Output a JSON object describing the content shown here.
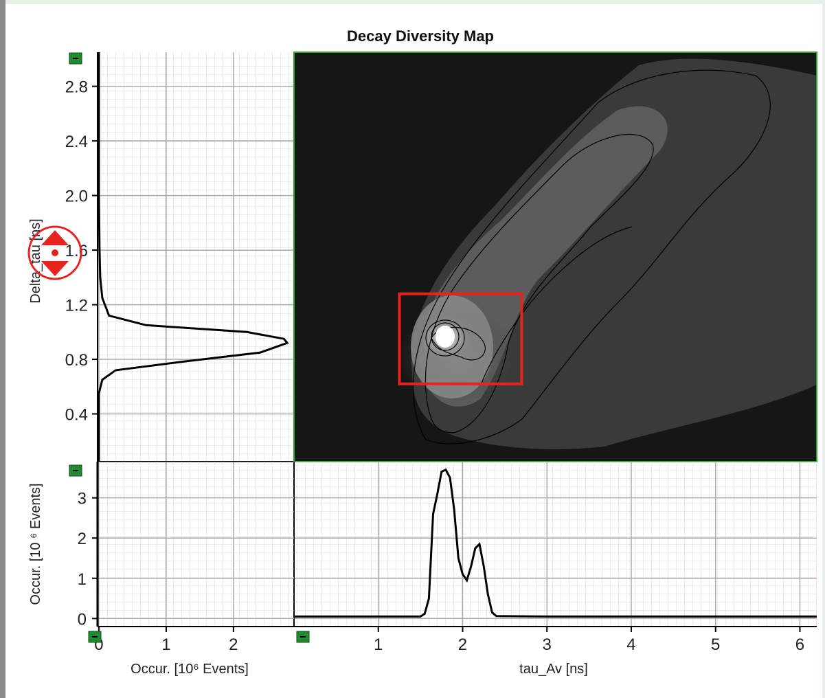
{
  "chart_data": {
    "type": "heatmap",
    "title": "Decay Diversity Map",
    "map": {
      "xlabel": "tau_Av [ns]",
      "ylabel": "Delta_tau [ns]",
      "xlim": [
        0.0,
        6.2
      ],
      "ylim": [
        0.05,
        3.05
      ],
      "colormap": "grayscale",
      "peaks": [
        {
          "x": 1.8,
          "y": 0.95,
          "rel_intensity": 1.0
        },
        {
          "x": 2.2,
          "y": 0.85,
          "rel_intensity": 0.5
        }
      ],
      "contours": "yes",
      "selection_box": {
        "x_range": [
          1.25,
          2.7
        ],
        "y_range": [
          0.62,
          1.28
        ],
        "color": "#e8231f"
      }
    },
    "x_histogram": {
      "type": "line",
      "xlabel": "tau_Av [ns]",
      "ylabel": "Occur. [10 ⁶ Events]",
      "xlim": [
        0.0,
        6.2
      ],
      "ylim": [
        -0.2,
        3.9
      ],
      "x_ticks": [
        1,
        2,
        3,
        4,
        5,
        6
      ],
      "y_ticks": [
        0,
        1,
        2,
        3
      ],
      "x": [
        0.0,
        1.5,
        1.55,
        1.6,
        1.65,
        1.7,
        1.75,
        1.8,
        1.85,
        1.9,
        1.95,
        2.0,
        2.05,
        2.1,
        2.15,
        2.2,
        2.25,
        2.3,
        2.35,
        2.4,
        3.0,
        6.2
      ],
      "y": [
        0.05,
        0.05,
        0.12,
        0.5,
        2.6,
        3.1,
        3.65,
        3.7,
        3.5,
        2.7,
        1.5,
        1.1,
        0.95,
        1.3,
        1.75,
        1.85,
        1.3,
        0.6,
        0.15,
        0.06,
        0.05,
        0.05
      ]
    },
    "y_histogram": {
      "type": "line",
      "xlabel": "Occur. [10⁶ Events]",
      "ylabel": "Delta_tau [ns]",
      "xlim": [
        -0.02,
        2.9
      ],
      "x_ticks": [
        "0",
        "1",
        "2"
      ],
      "y_ticks": [
        "0.4",
        "0.8",
        "1.2",
        "1.6",
        "2.0",
        "2.4",
        "2.8"
      ],
      "counts": [
        0.0,
        0.0,
        0.05,
        0.25,
        1.2,
        2.4,
        2.8,
        2.75,
        2.2,
        0.7,
        0.15,
        0.05,
        0.02,
        0.01,
        0.0,
        0.0
      ],
      "delta_tau": [
        0.05,
        0.55,
        0.65,
        0.72,
        0.78,
        0.85,
        0.92,
        0.95,
        1.0,
        1.05,
        1.12,
        1.25,
        1.4,
        1.6,
        2.0,
        3.05
      ]
    },
    "grid": "on"
  },
  "colors": {
    "axis_corner_markers": "#1f8a2f",
    "map_border": "#22aa22",
    "selection": "#e8231f",
    "curve": "#000000"
  },
  "icons": {
    "drag_handle": "pan-arrows-icon"
  }
}
